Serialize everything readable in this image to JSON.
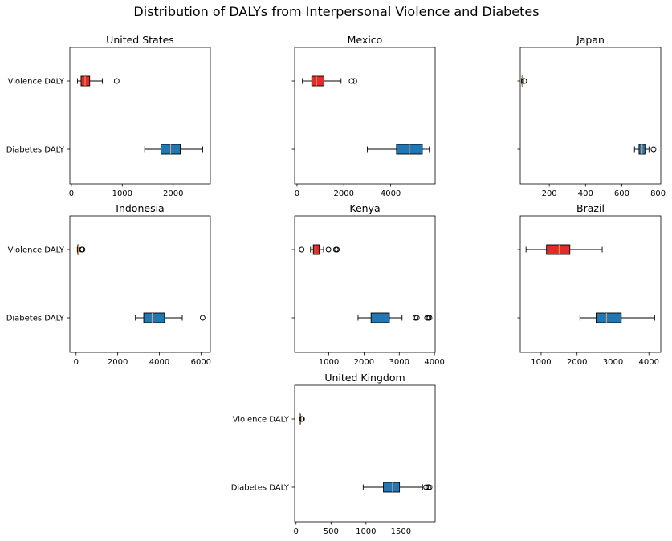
{
  "chart_data": {
    "type": "boxplot",
    "title": "Distribution of DALYs from Interpersonal Violence and Diabetes",
    "orientation": "horizontal",
    "category_labels": [
      "Violence DALY",
      "Diabetes DALY"
    ],
    "series_colors": {
      "Violence DALY": "#e32b2b",
      "Diabetes DALY": "#2077b4"
    },
    "median_color": "#f5a05a",
    "panels": [
      {
        "title": "United States",
        "xlim": [
          -30,
          2730
        ],
        "xticks": [
          0,
          1000,
          2000
        ],
        "show_ylabels": true,
        "boxes": {
          "Violence DALY": {
            "whislo": 120,
            "q1": 190,
            "med": 270,
            "q3": 360,
            "whishi": 610,
            "fliers": [
              890
            ]
          },
          "Diabetes DALY": {
            "whislo": 1440,
            "q1": 1760,
            "med": 1950,
            "q3": 2140,
            "whishi": 2580,
            "fliers": []
          }
        }
      },
      {
        "title": "Mexico",
        "xlim": [
          -100,
          5900
        ],
        "xticks": [
          0,
          2000,
          4000
        ],
        "show_ylabels": false,
        "boxes": {
          "Violence DALY": {
            "whislo": 230,
            "q1": 630,
            "med": 830,
            "q3": 1150,
            "whishi": 1880,
            "fliers": [
              2330,
              2450
            ]
          },
          "Diabetes DALY": {
            "whislo": 3000,
            "q1": 4250,
            "med": 4800,
            "q3": 5350,
            "whishi": 5650,
            "fliers": []
          }
        }
      },
      {
        "title": "Japan",
        "xlim": [
          40,
          815
        ],
        "xticks": [
          200,
          400,
          600,
          800
        ],
        "show_ylabels": false,
        "boxes": {
          "Violence DALY": {
            "whislo": 47,
            "q1": 50,
            "med": 52,
            "q3": 55,
            "whishi": 58,
            "fliers": [
              62
            ]
          },
          "Diabetes DALY": {
            "whislo": 670,
            "q1": 695,
            "med": 712,
            "q3": 728,
            "whishi": 750,
            "fliers": [
              775
            ]
          }
        }
      },
      {
        "title": "Indonesia",
        "xlim": [
          -300,
          6450
        ],
        "xticks": [
          0,
          2000,
          4000,
          6000
        ],
        "show_ylabels": true,
        "boxes": {
          "Violence DALY": {
            "whislo": 60,
            "q1": 80,
            "med": 100,
            "q3": 125,
            "whishi": 150,
            "fliers": [
              270,
              310
            ]
          },
          "Diabetes DALY": {
            "whislo": 2850,
            "q1": 3250,
            "med": 3650,
            "q3": 4250,
            "whishi": 5100,
            "fliers": [
              6080
            ]
          }
        }
      },
      {
        "title": "Kenya",
        "xlim": [
          30,
          4020
        ],
        "xticks": [
          1000,
          2000,
          3000,
          4000
        ],
        "show_ylabels": false,
        "boxes": {
          "Violence DALY": {
            "whislo": 480,
            "q1": 560,
            "med": 630,
            "q3": 730,
            "whishi": 850,
            "fliers": [
              230,
              990,
              1200,
              1230
            ]
          },
          "Diabetes DALY": {
            "whislo": 1830,
            "q1": 2200,
            "med": 2480,
            "q3": 2720,
            "whishi": 3080,
            "fliers": [
              3460,
              3500,
              3790,
              3830,
              3860
            ]
          }
        }
      },
      {
        "title": "Brazil",
        "xlim": [
          420,
          4330
        ],
        "xticks": [
          1000,
          2000,
          3000,
          4000
        ],
        "show_ylabels": false,
        "boxes": {
          "Violence DALY": {
            "whislo": 580,
            "q1": 1150,
            "med": 1500,
            "q3": 1800,
            "whishi": 2700,
            "fliers": []
          },
          "Diabetes DALY": {
            "whislo": 2080,
            "q1": 2530,
            "med": 2820,
            "q3": 3230,
            "whishi": 4160,
            "fliers": []
          }
        }
      },
      {
        "title": "United Kingdom",
        "xlim": [
          -20,
          1990
        ],
        "xticks": [
          0,
          500,
          1000,
          1500
        ],
        "show_ylabels": true,
        "boxes": {
          "Violence DALY": {
            "whislo": 45,
            "q1": 52,
            "med": 57,
            "q3": 63,
            "whishi": 70,
            "fliers": [
              78,
              82,
              86
            ]
          },
          "Diabetes DALY": {
            "whislo": 960,
            "q1": 1250,
            "med": 1380,
            "q3": 1480,
            "whishi": 1810,
            "fliers": [
              1860,
              1890,
              1910
            ]
          }
        }
      }
    ]
  }
}
